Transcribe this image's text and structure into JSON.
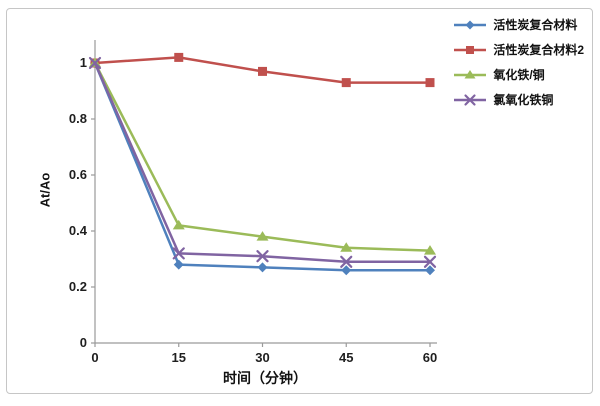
{
  "chart_data": {
    "type": "line",
    "title": "",
    "xlabel": "时间（分钟）",
    "ylabel": "At/Ao",
    "x": [
      0,
      15,
      30,
      45,
      60
    ],
    "x_tick_labels": [
      "0",
      "15",
      "30",
      "45",
      "60"
    ],
    "y_ticks": [
      0,
      0.2,
      0.4,
      0.6,
      0.8,
      1
    ],
    "y_tick_labels": [
      "0",
      "0.2",
      "0.4",
      "0.6",
      "0.8",
      "1"
    ],
    "xlim": [
      0,
      60
    ],
    "ylim": [
      0,
      1.08
    ],
    "grid": false,
    "legend_position": "right",
    "axis_color": "#9a9a9a",
    "series": [
      {
        "name": "活性炭复合材料",
        "color": "#4F81BD",
        "marker": "diamond",
        "values": [
          1.0,
          0.28,
          0.27,
          0.26,
          0.26
        ]
      },
      {
        "name": "活性炭复合材料2",
        "color": "#C0504D",
        "marker": "square",
        "values": [
          1.0,
          1.02,
          0.97,
          0.93,
          0.93
        ]
      },
      {
        "name": "氧化铁/铜",
        "color": "#9BBB59",
        "marker": "triangle",
        "values": [
          1.0,
          0.42,
          0.38,
          0.34,
          0.33
        ]
      },
      {
        "name": "氯氧化铁铜",
        "color": "#8064A2",
        "marker": "x",
        "values": [
          1.0,
          0.32,
          0.31,
          0.29,
          0.29
        ]
      }
    ]
  }
}
